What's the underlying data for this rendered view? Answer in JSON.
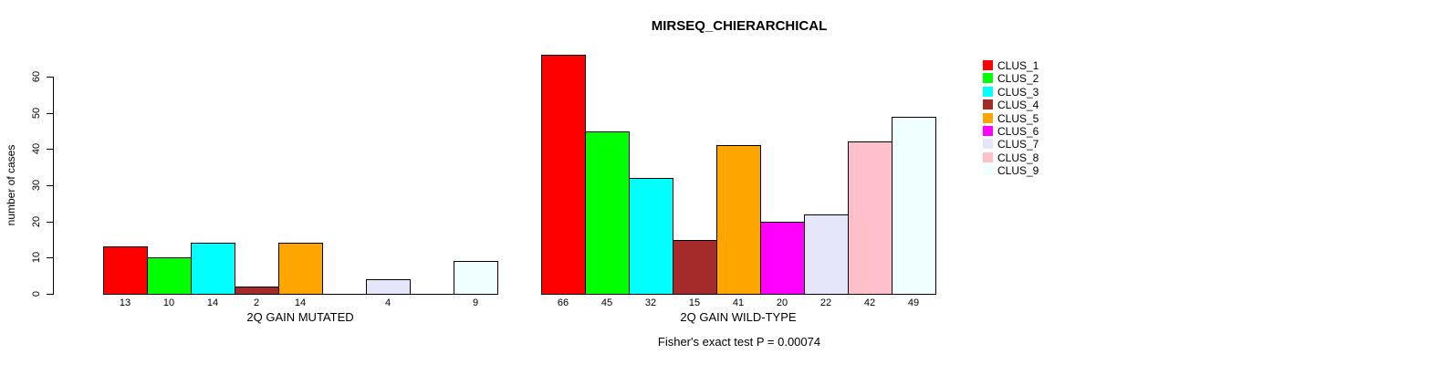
{
  "chart_data": {
    "type": "bar",
    "title": "MIRSEQ_CHIERARCHICAL",
    "ylabel": "number of cases",
    "ylim": [
      0,
      60
    ],
    "yticks": [
      0,
      10,
      20,
      30,
      40,
      50,
      60
    ],
    "grid": false,
    "legend_position": "right",
    "categories": [
      "2Q GAIN MUTATED",
      "2Q GAIN WILD-TYPE"
    ],
    "series": [
      {
        "name": "CLUS_1",
        "color": "#FF0000",
        "values": [
          13,
          66
        ]
      },
      {
        "name": "CLUS_2",
        "color": "#00FF00",
        "values": [
          10,
          45
        ]
      },
      {
        "name": "CLUS_3",
        "color": "#00FFFF",
        "values": [
          14,
          32
        ]
      },
      {
        "name": "CLUS_4",
        "color": "#A52A2A",
        "values": [
          2,
          15
        ]
      },
      {
        "name": "CLUS_5",
        "color": "#FFA500",
        "values": [
          14,
          41
        ]
      },
      {
        "name": "CLUS_6",
        "color": "#FF00FF",
        "values": [
          0,
          20
        ]
      },
      {
        "name": "CLUS_7",
        "color": "#E6E6FA",
        "values": [
          4,
          22
        ]
      },
      {
        "name": "CLUS_8",
        "color": "#FFC0CB",
        "values": [
          0,
          42
        ]
      },
      {
        "name": "CLUS_9",
        "color": "#F0FFFF",
        "values": [
          9,
          49
        ]
      }
    ],
    "bar_value_labels": "values shown under each nonzero bar",
    "annotation": "Fisher's exact test P = 0.00074"
  }
}
